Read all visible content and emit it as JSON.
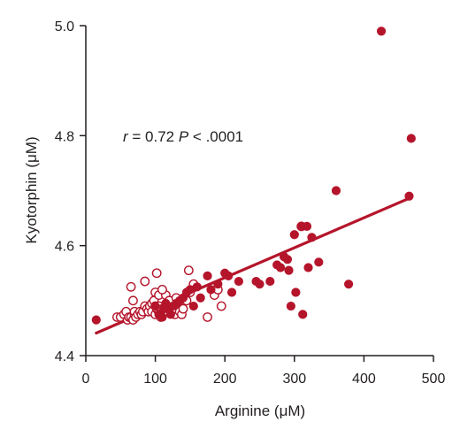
{
  "chart_data": {
    "type": "scatter",
    "xlabel": "Arginine (μM)",
    "ylabel": "Kyotorphin (μM)",
    "xlim": [
      0,
      500
    ],
    "ylim": [
      4.4,
      5.0
    ],
    "xticks": [
      "0",
      "100",
      "200",
      "300",
      "400",
      "500"
    ],
    "yticks": [
      "4.4",
      "4.6",
      "4.8",
      "5.0"
    ],
    "annotation": {
      "r_symbol": "r",
      "r_text": " = 0.72 ",
      "p_symbol": "P",
      "p_text": " < .0001"
    },
    "colors": {
      "series": "#b5152b",
      "axis": "#231f20"
    },
    "regression_line": {
      "x": [
        15,
        465
      ],
      "y": [
        4.441,
        4.686
      ]
    },
    "series": [
      {
        "marker": "open-circle",
        "points": [
          [
            45,
            4.47
          ],
          [
            50,
            4.47
          ],
          [
            55,
            4.475
          ],
          [
            58,
            4.48
          ],
          [
            60,
            4.465
          ],
          [
            62,
            4.47
          ],
          [
            65,
            4.47
          ],
          [
            68,
            4.465
          ],
          [
            70,
            4.475
          ],
          [
            70,
            4.48
          ],
          [
            72,
            4.47
          ],
          [
            75,
            4.475
          ],
          [
            78,
            4.48
          ],
          [
            80,
            4.475
          ],
          [
            82,
            4.48
          ],
          [
            85,
            4.49
          ],
          [
            88,
            4.485
          ],
          [
            90,
            4.48
          ],
          [
            92,
            4.49
          ],
          [
            95,
            4.495
          ],
          [
            95,
            4.48
          ],
          [
            98,
            4.5
          ],
          [
            100,
            4.475
          ],
          [
            100,
            4.49
          ],
          [
            102,
            4.485
          ],
          [
            105,
            4.48
          ],
          [
            105,
            4.49
          ],
          [
            108,
            4.47
          ],
          [
            110,
            4.485
          ],
          [
            112,
            4.48
          ],
          [
            115,
            4.49
          ],
          [
            118,
            4.48
          ],
          [
            120,
            4.485
          ],
          [
            122,
            4.49
          ],
          [
            125,
            4.48
          ],
          [
            128,
            4.475
          ],
          [
            130,
            4.485
          ],
          [
            132,
            4.49
          ],
          [
            135,
            4.48
          ],
          [
            138,
            4.475
          ],
          [
            140,
            4.485
          ],
          [
            145,
            4.5
          ],
          [
            150,
            4.515
          ],
          [
            155,
            4.53
          ],
          [
            148,
            4.555
          ],
          [
            102,
            4.55
          ],
          [
            100,
            4.515
          ],
          [
            105,
            4.51
          ],
          [
            115,
            4.51
          ],
          [
            110,
            4.52
          ],
          [
            120,
            4.5
          ],
          [
            130,
            4.505
          ],
          [
            85,
            4.535
          ],
          [
            68,
            4.5
          ],
          [
            65,
            4.525
          ],
          [
            175,
            4.47
          ],
          [
            185,
            4.51
          ],
          [
            195,
            4.49
          ],
          [
            190,
            4.52
          ],
          [
            310,
            4.635
          ]
        ]
      },
      {
        "marker": "filled-circle",
        "points": [
          [
            15,
            4.465
          ],
          [
            100,
            4.49
          ],
          [
            105,
            4.475
          ],
          [
            110,
            4.47
          ],
          [
            112,
            4.485
          ],
          [
            115,
            4.495
          ],
          [
            118,
            4.485
          ],
          [
            122,
            4.475
          ],
          [
            125,
            4.49
          ],
          [
            130,
            4.495
          ],
          [
            135,
            4.5
          ],
          [
            140,
            4.505
          ],
          [
            145,
            4.515
          ],
          [
            150,
            4.52
          ],
          [
            155,
            4.49
          ],
          [
            160,
            4.525
          ],
          [
            165,
            4.505
          ],
          [
            175,
            4.545
          ],
          [
            180,
            4.52
          ],
          [
            190,
            4.53
          ],
          [
            200,
            4.55
          ],
          [
            205,
            4.545
          ],
          [
            210,
            4.515
          ],
          [
            220,
            4.535
          ],
          [
            245,
            4.535
          ],
          [
            250,
            4.53
          ],
          [
            265,
            4.535
          ],
          [
            275,
            4.565
          ],
          [
            280,
            4.56
          ],
          [
            285,
            4.58
          ],
          [
            290,
            4.575
          ],
          [
            292,
            4.555
          ],
          [
            295,
            4.49
          ],
          [
            300,
            4.62
          ],
          [
            302,
            4.515
          ],
          [
            310,
            4.635
          ],
          [
            312,
            4.475
          ],
          [
            318,
            4.635
          ],
          [
            320,
            4.56
          ],
          [
            325,
            4.615
          ],
          [
            335,
            4.57
          ],
          [
            360,
            4.7
          ],
          [
            378,
            4.53
          ],
          [
            425,
            4.99
          ],
          [
            465,
            4.69
          ],
          [
            468,
            4.795
          ]
        ]
      }
    ]
  }
}
